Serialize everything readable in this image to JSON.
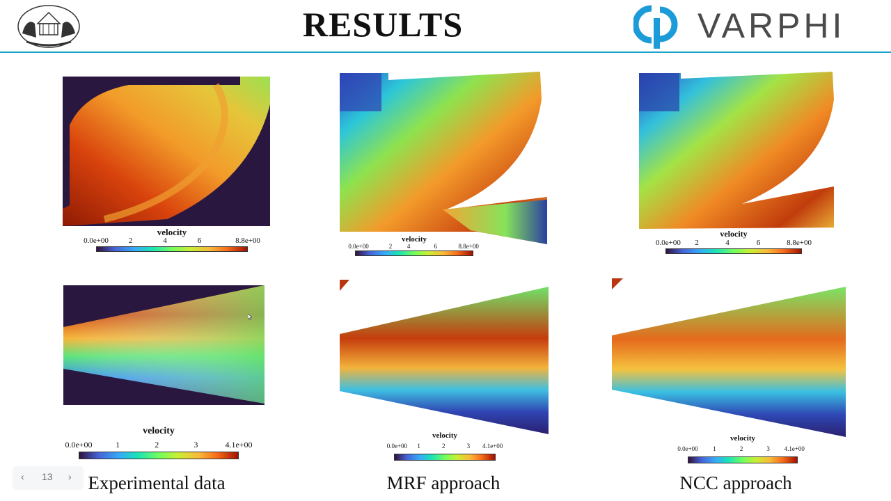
{
  "slide": {
    "title": "RESULTS",
    "brand": "VARPHI",
    "page_number": "13",
    "prev_icon": "‹",
    "next_icon": "›"
  },
  "colorbars": {
    "top": {
      "label": "velocity",
      "ticks": [
        "0.0e+00",
        "2",
        "4",
        "6",
        "8.8e+00"
      ]
    },
    "bottom": {
      "label": "velocity",
      "ticks": [
        "0.0e+00",
        "1",
        "2",
        "3",
        "4.1e+00"
      ]
    }
  },
  "captions": [
    "Experimental data",
    "MRF approach",
    "NCC approach"
  ],
  "colors": {
    "accent_line": "#1ba3c9",
    "brand_blue": "#1b9bd8",
    "dark_background": "#2a1740"
  }
}
